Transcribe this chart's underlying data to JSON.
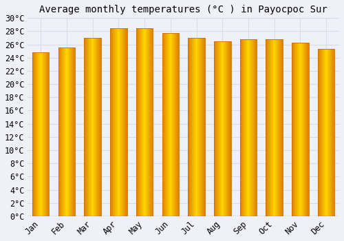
{
  "title": "Average monthly temperatures (°C ) in Payocpoc Sur",
  "months": [
    "Jan",
    "Feb",
    "Mar",
    "Apr",
    "May",
    "Jun",
    "Jul",
    "Aug",
    "Sep",
    "Oct",
    "Nov",
    "Dec"
  ],
  "values": [
    24.8,
    25.5,
    27.0,
    28.5,
    28.5,
    27.7,
    27.0,
    26.5,
    26.8,
    26.8,
    26.3,
    25.3
  ],
  "bar_color_center": "#FFD700",
  "bar_color_edge": "#FFA500",
  "background_color": "#F0F0F8",
  "plot_bg_color": "#F0F0F8",
  "grid_color": "#DCDCE8",
  "ylim": [
    0,
    30
  ],
  "ytick_step": 2,
  "title_fontsize": 10,
  "tick_fontsize": 8.5,
  "font_family": "monospace",
  "bar_width": 0.65
}
